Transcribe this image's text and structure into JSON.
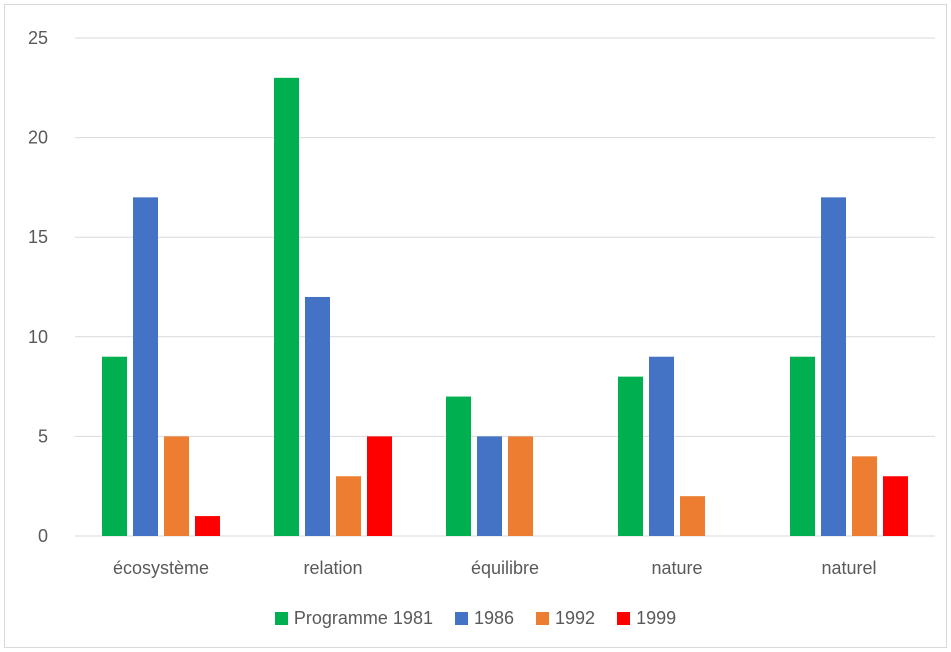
{
  "chart_data": {
    "type": "bar",
    "title": "",
    "xlabel": "",
    "ylabel": "",
    "categories": [
      "écosystème",
      "relation",
      "équilibre",
      "nature",
      "naturel"
    ],
    "series": [
      {
        "name": "Programme 1981",
        "color": "#00b050",
        "values": [
          9,
          23,
          7,
          8,
          9
        ]
      },
      {
        "name": "1986",
        "color": "#4472c4",
        "values": [
          17,
          12,
          5,
          9,
          17
        ]
      },
      {
        "name": "1992",
        "color": "#ed7d31",
        "values": [
          5,
          3,
          5,
          2,
          4
        ]
      },
      {
        "name": "1999",
        "color": "#ff0000",
        "values": [
          1,
          5,
          0,
          0,
          3
        ]
      }
    ],
    "ylim": [
      0,
      25
    ],
    "yticks": [
      0,
      5,
      10,
      15,
      20,
      25
    ],
    "grid": true,
    "legend": "bottom"
  }
}
